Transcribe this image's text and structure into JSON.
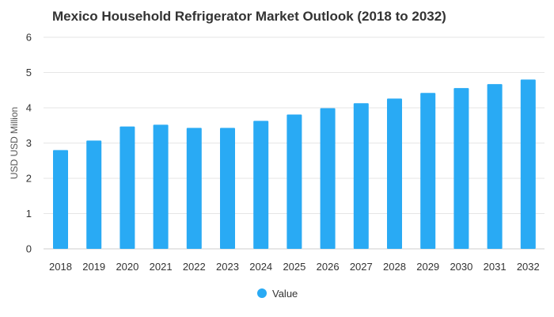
{
  "chart_data": {
    "type": "bar",
    "title": "Mexico Household Refrigerator Market Outlook (2018 to 2032)",
    "ylabel": "USD USD Million",
    "xlabel": "",
    "categories": [
      "2018",
      "2019",
      "2020",
      "2021",
      "2022",
      "2023",
      "2024",
      "2025",
      "2026",
      "2027",
      "2028",
      "2029",
      "2030",
      "2031",
      "2032"
    ],
    "series": [
      {
        "name": "Value",
        "color": "#29aaf4",
        "values": [
          2.8,
          3.07,
          3.47,
          3.52,
          3.43,
          3.43,
          3.63,
          3.81,
          3.99,
          4.13,
          4.26,
          4.42,
          4.56,
          4.67,
          4.8
        ]
      }
    ],
    "ylim": [
      0,
      6
    ],
    "yticks": [
      "0",
      "1",
      "2",
      "3",
      "4",
      "5",
      "6"
    ],
    "grid": true,
    "legend_position": "bottom-center"
  }
}
